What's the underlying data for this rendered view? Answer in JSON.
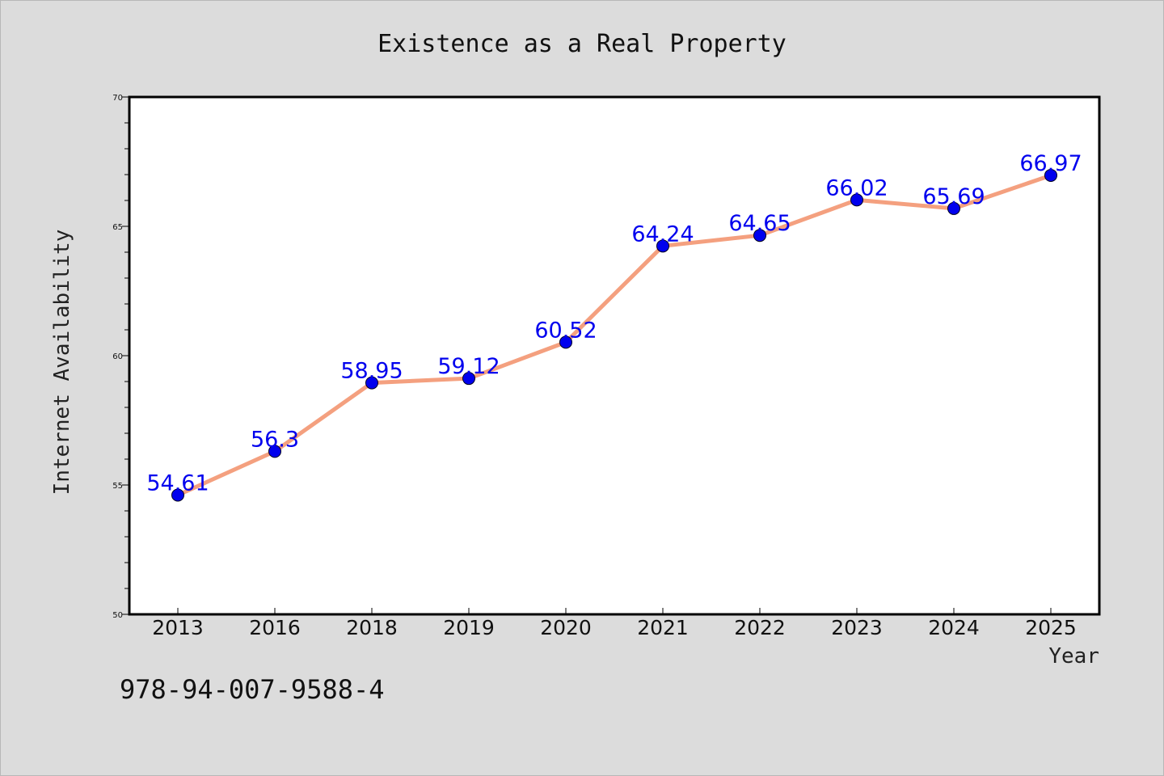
{
  "chart_data": {
    "type": "line",
    "title": "Existence as a Real Property",
    "xlabel": "Year",
    "ylabel": "Internet Availability",
    "categories": [
      "2013",
      "2016",
      "2018",
      "2019",
      "2020",
      "2021",
      "2022",
      "2023",
      "2024",
      "2025"
    ],
    "series": [
      {
        "values": [
          54.61,
          56.3,
          58.95,
          59.12,
          60.52,
          64.24,
          64.65,
          66.02,
          65.69,
          66.97
        ],
        "data_labels": [
          "54.61",
          "56.3",
          "58.95",
          "59.12",
          "60.52",
          "64.24",
          "64.65",
          "66.02",
          "65.69",
          "66.97"
        ],
        "line_color": "#f4a07f",
        "marker_color": "#0000ee",
        "label_color": "#0000ee"
      }
    ],
    "ylim": [
      50,
      70
    ],
    "yticks": [
      50,
      55,
      60,
      65,
      70
    ],
    "ytick_labels": [
      "50",
      "55",
      "60",
      "65",
      "70"
    ],
    "grid": false,
    "legend": "none",
    "background_color": "#dcdcdc",
    "plot_background_color": "#ffffff"
  },
  "footnote": "978-94-007-9588-4"
}
